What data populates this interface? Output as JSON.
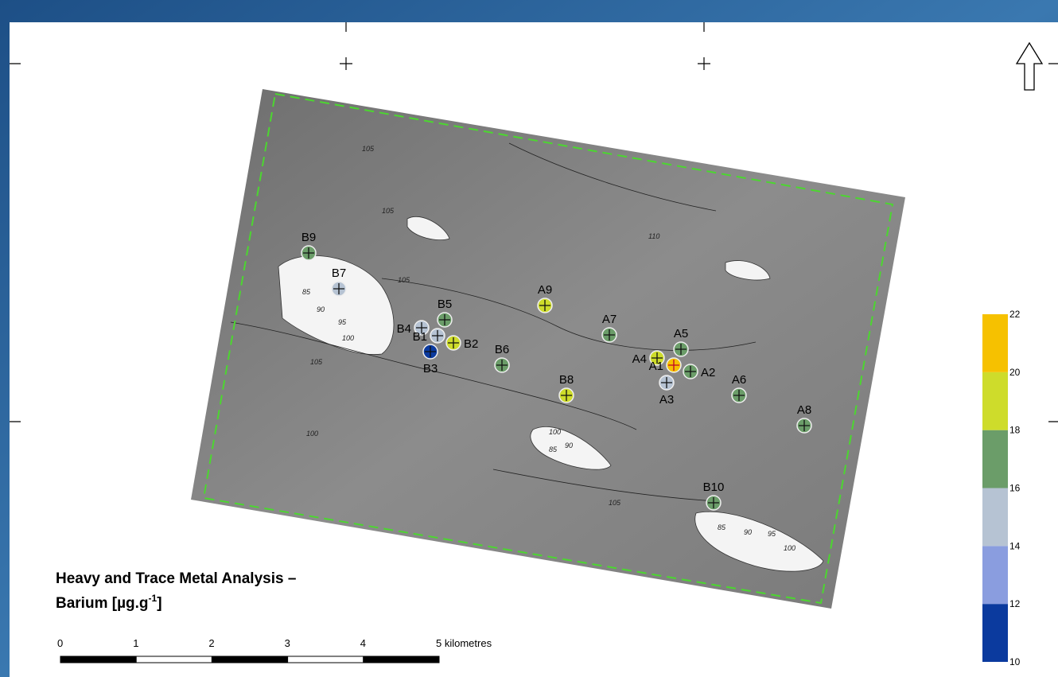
{
  "title": {
    "line1": "Heavy and Trace Metal Analysis –",
    "line2": "Barium [µg.g",
    "superscript": "-1",
    "suffix": "]"
  },
  "legend": {
    "ticks": [
      10,
      12,
      14,
      16,
      18,
      20,
      22
    ],
    "colors": [
      "#0b3a9e",
      "#8a9ddf",
      "#b6c3d3",
      "#6b9d69",
      "#cedc2b",
      "#f6c100"
    ]
  },
  "sites": [
    {
      "label": "B9",
      "value": 17
    },
    {
      "label": "B7",
      "value": 15
    },
    {
      "label": "B5",
      "value": 17
    },
    {
      "label": "B4",
      "value": 15
    },
    {
      "label": "B1",
      "value": 15
    },
    {
      "label": "B2",
      "value": 19
    },
    {
      "label": "B3",
      "value": 11
    },
    {
      "label": "B6",
      "value": 17
    },
    {
      "label": "A9",
      "value": 19
    },
    {
      "label": "A7",
      "value": 17
    },
    {
      "label": "A5",
      "value": 17
    },
    {
      "label": "A4",
      "value": 19
    },
    {
      "label": "A1",
      "value": 21
    },
    {
      "label": "A2",
      "value": 17
    },
    {
      "label": "A3",
      "value": 15
    },
    {
      "label": "A6",
      "value": 17
    },
    {
      "label": "B8",
      "value": 19
    },
    {
      "label": "A8",
      "value": 17
    },
    {
      "label": "B10",
      "value": 17
    }
  ],
  "scale_bar": {
    "ticks": [
      0,
      1,
      2,
      3,
      4,
      {
        "value": 5,
        "label": "5 kilometres"
      }
    ]
  },
  "contour_labels": [
    "105",
    "105",
    "110",
    "105",
    "85",
    "90",
    "95",
    "100",
    "105",
    "100",
    "85",
    "90",
    "100",
    "85",
    "90",
    "95",
    "100",
    "105"
  ]
}
